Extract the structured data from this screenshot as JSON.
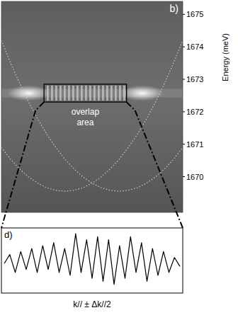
{
  "chart_data": [
    {
      "type": "dispersion_image",
      "title": "b)",
      "ylabel": "Energy (meV)",
      "xlim": [
        -1,
        1
      ],
      "ylim": [
        1668.9,
        1675.4
      ],
      "yticks": [
        1670,
        1671,
        1672,
        1673,
        1674,
        1675
      ],
      "tick_labels": "y",
      "x": [
        -1,
        -0.9,
        -0.8,
        -0.7,
        -0.6,
        -0.5,
        -0.4,
        -0.3,
        -0.2,
        -0.1,
        0,
        0.1,
        0.2,
        0.3,
        0.4,
        0.5,
        0.6,
        0.7,
        0.8,
        0.9,
        1
      ],
      "series": [
        {
          "values": [
            1674.2,
            1673.51,
            1672.88,
            1672.3,
            1671.78,
            1671.31,
            1670.9,
            1670.54,
            1670.24,
            1669.99,
            1669.8,
            1669.66,
            1669.58,
            1669.55,
            1669.58,
            1669.66,
            1669.8,
            1669.99,
            1670.24,
            1670.54,
            1670.9
          ],
          "line_style": "dotted",
          "color": "#c8c8c8"
        },
        {
          "values": [
            1670.9,
            1670.54,
            1670.24,
            1669.99,
            1669.8,
            1669.66,
            1669.58,
            1669.55,
            1669.58,
            1669.66,
            1669.8,
            1669.99,
            1670.24,
            1670.54,
            1670.9,
            1671.31,
            1671.78,
            1672.3,
            1672.88,
            1673.51,
            1674.2
          ],
          "line_style": "dotted",
          "color": "#c8c8c8"
        }
      ],
      "box": {
        "x": [
          -0.53,
          0.38
        ],
        "y": [
          1672.3,
          1672.85
        ]
      },
      "annotations": [
        {
          "text": "overlap area"
        }
      ]
    },
    {
      "type": "line",
      "title": "d)",
      "xlabel": "k// ± Δk//2",
      "tick_labels": false,
      "xlim": [
        0,
        32
      ],
      "ylim": [
        0,
        1
      ],
      "x": [
        0,
        1,
        2,
        3,
        4,
        5,
        6,
        7,
        8,
        9,
        10,
        11,
        12,
        13,
        14,
        15,
        16,
        17,
        18,
        19,
        20,
        21,
        22,
        23,
        24,
        25,
        26,
        27,
        28,
        29,
        30,
        31,
        32
      ],
      "series": [
        {
          "values": [
            0.45,
            0.6,
            0.3,
            0.65,
            0.35,
            0.7,
            0.3,
            0.75,
            0.35,
            0.8,
            0.3,
            0.7,
            0.25,
            0.95,
            0.3,
            0.85,
            0.2,
            0.9,
            0.15,
            0.85,
            0.1,
            0.75,
            0.2,
            0.9,
            0.3,
            0.8,
            0.15,
            0.7,
            0.25,
            0.65,
            0.3,
            0.55,
            0.4
          ],
          "color": "#000000"
        }
      ]
    }
  ]
}
